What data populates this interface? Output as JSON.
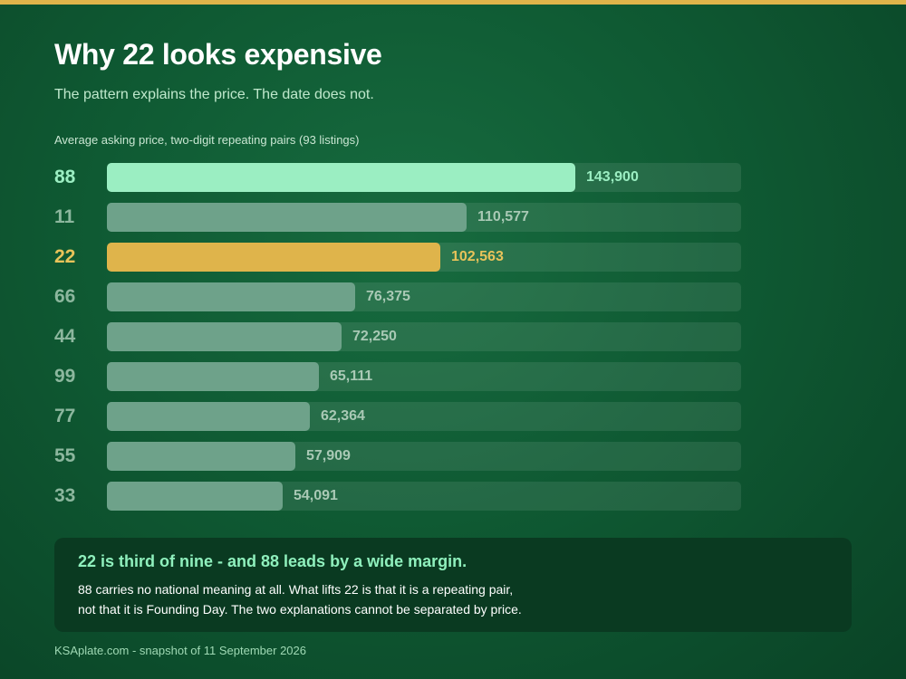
{
  "header": {
    "title": "Why 22 looks expensive",
    "subtitle": "The pattern explains the price. The date does not."
  },
  "chart_caption": "Average asking price, two-digit repeating pairs (93 listings)",
  "chart_data": {
    "type": "bar",
    "orientation": "horizontal",
    "title": "Average asking price, two-digit repeating pairs (93 listings)",
    "categories": [
      "88",
      "11",
      "22",
      "66",
      "44",
      "99",
      "77",
      "55",
      "33"
    ],
    "values": [
      143900,
      110577,
      102563,
      76375,
      72250,
      65111,
      62364,
      57909,
      54091
    ],
    "value_labels": [
      "143,900",
      "110,577",
      "102,563",
      "76,375",
      "72,250",
      "65,111",
      "62,364",
      "57,909",
      "54,091"
    ],
    "xlim": [
      0,
      195000
    ],
    "highlight": {
      "leader": "88",
      "focus": "22"
    },
    "grid": false
  },
  "colors": {
    "leader": "#9beec2",
    "focus": "#dfb44b",
    "default_bar": "#6ea28a",
    "leader_label": "#9beec2",
    "focus_label": "#e8c35a",
    "default_label": "#8cb79e",
    "default_value": "#a9c9b5"
  },
  "callout": {
    "heading": "22 is third of nine - and 88 leads by a wide margin.",
    "body_line1": "88 carries no national meaning at all. What lifts 22 is that it is a repeating pair,",
    "body_line2": "not that it is Founding Day. The two explanations cannot be separated by price."
  },
  "footer": "KSAplate.com - snapshot of 11 September 2026"
}
